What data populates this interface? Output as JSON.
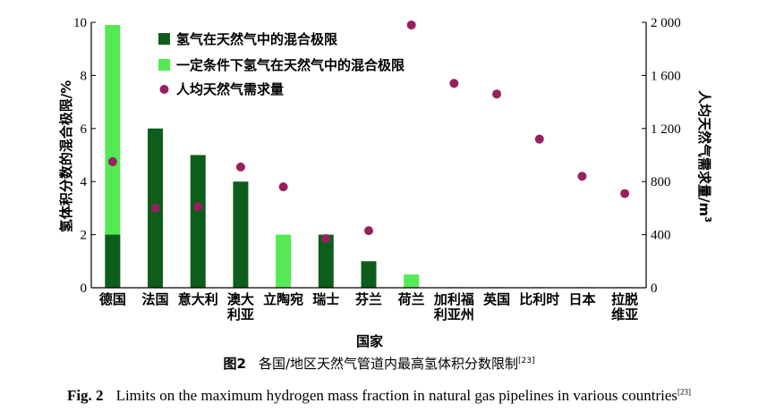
{
  "chart_data": {
    "type": "bar",
    "categories": [
      "德国",
      "法国",
      "意大利",
      "澳大\n利亚",
      "立陶宛",
      "瑞士",
      "芬兰",
      "荷兰",
      "加利福\n利亚州",
      "英国",
      "比利时",
      "日本",
      "拉脱\n维亚"
    ],
    "series": [
      {
        "name": "氢气在天然气中的混合极限",
        "axis": "left",
        "kind": "bar",
        "color": "#0d5e1a",
        "values": [
          2,
          6,
          5,
          4,
          0,
          2,
          1,
          0,
          0.02,
          0.02,
          0.02,
          0.02,
          0.02
        ]
      },
      {
        "name": "一定条件下氢气在天然气中的混合极限",
        "axis": "left",
        "kind": "bar",
        "color": "#55ea55",
        "values": [
          9.9,
          0,
          0,
          0,
          2,
          0,
          0,
          0.5,
          0,
          0,
          0,
          0,
          0
        ]
      },
      {
        "name": "人均天然气需求量",
        "axis": "right",
        "kind": "scatter",
        "color": "#98205f",
        "values": [
          950,
          600,
          610,
          910,
          760,
          370,
          430,
          1980,
          1540,
          1460,
          1120,
          840,
          710
        ]
      }
    ],
    "xlabel": "国家",
    "ylabel_left": "氢体积分数的混合极限/%",
    "ylabel_right_main": "人均天然气需求量/m",
    "ylabel_right_sup": "3",
    "ylim_left": [
      0,
      10
    ],
    "yticks_left": [
      0,
      2,
      4,
      6,
      8,
      10
    ],
    "ylim_right": [
      0,
      2000
    ],
    "yticks_right": [
      0,
      400,
      800,
      1200,
      1600,
      2000
    ],
    "ytick_labels_right": [
      "0",
      "400",
      "800",
      "1 200",
      "1 600",
      "2 000"
    ],
    "legend_position": "top-left",
    "grid": false
  },
  "caption": {
    "cn_label": "图2",
    "cn_text": "各国/地区天然气管道内最高氢体积分数限制",
    "cn_ref": "[23]",
    "en_label": "Fig. 2",
    "en_text": "Limits on the maximum hydrogen mass fraction in natural gas pipelines in various countries",
    "en_ref": "[23]"
  }
}
